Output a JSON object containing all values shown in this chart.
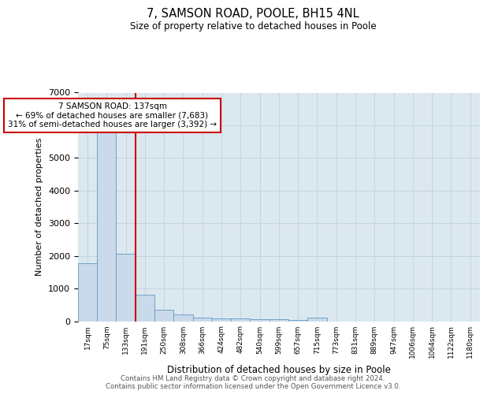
{
  "title": "7, SAMSON ROAD, POOLE, BH15 4NL",
  "subtitle": "Size of property relative to detached houses in Poole",
  "xlabel": "Distribution of detached houses by size in Poole",
  "ylabel": "Number of detached properties",
  "categories": [
    "17sqm",
    "75sqm",
    "133sqm",
    "191sqm",
    "250sqm",
    "308sqm",
    "366sqm",
    "424sqm",
    "482sqm",
    "540sqm",
    "599sqm",
    "657sqm",
    "715sqm",
    "773sqm",
    "831sqm",
    "889sqm",
    "947sqm",
    "1006sqm",
    "1064sqm",
    "1122sqm",
    "1180sqm"
  ],
  "values": [
    1780,
    5800,
    2060,
    820,
    350,
    200,
    115,
    90,
    75,
    55,
    50,
    45,
    100,
    0,
    0,
    0,
    0,
    0,
    0,
    0,
    0
  ],
  "bar_color": "#c9daea",
  "bar_edge_color": "#6ea3c8",
  "vline_x_index": 2,
  "vline_color": "#cc0000",
  "annotation_text": "7 SAMSON ROAD: 137sqm\n← 69% of detached houses are smaller (7,683)\n31% of semi-detached houses are larger (3,392) →",
  "annotation_box_color": "#ffffff",
  "annotation_box_edge_color": "#cc0000",
  "ylim": [
    0,
    7000
  ],
  "plot_bg_color": "#dce8f0",
  "background_color": "#ffffff",
  "grid_color": "#c0d0e0",
  "footer_line1": "Contains HM Land Registry data © Crown copyright and database right 2024.",
  "footer_line2": "Contains public sector information licensed under the Open Government Licence v3.0."
}
